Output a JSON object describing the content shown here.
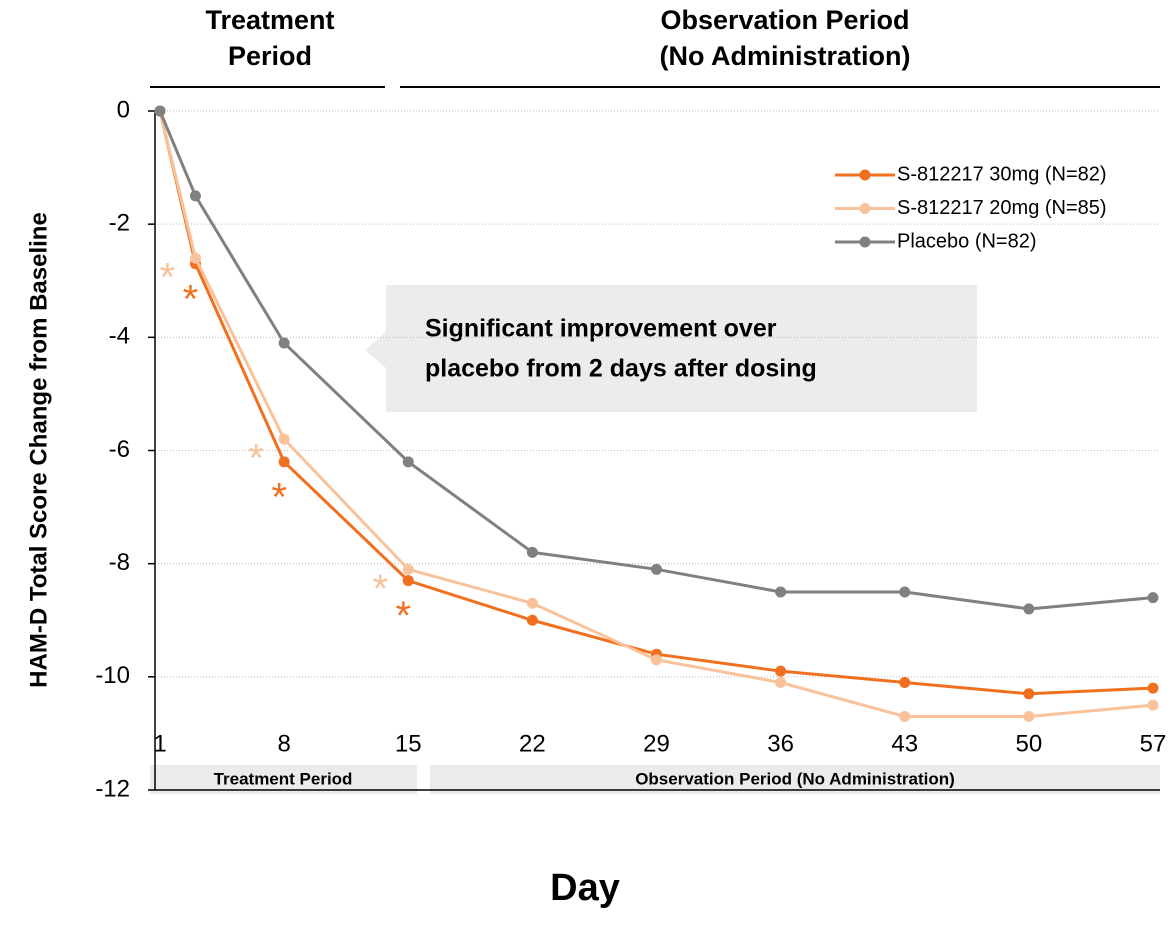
{
  "chart_data": {
    "type": "line",
    "ylabel": "HAM-D Total Score Change from Baseline",
    "xlabel": "Day",
    "period_headers": [
      {
        "lines": [
          "Treatment",
          "Period"
        ]
      },
      {
        "lines": [
          "Observation Period",
          "(No Administration)"
        ]
      }
    ],
    "period_bands": [
      "Treatment Period",
      "Observation Period (No Administration)"
    ],
    "annotation": [
      "Significant improvement over",
      "placebo from 2 days after dosing"
    ],
    "x": [
      1,
      3,
      8,
      15,
      22,
      29,
      36,
      43,
      50,
      57
    ],
    "series": [
      {
        "name": "S-812217 30mg (N=82)",
        "color": "#f07020",
        "values": [
          0,
          -2.7,
          -6.2,
          -8.3,
          -9.0,
          -9.6,
          -9.9,
          -10.1,
          -10.3,
          -10.2
        ],
        "marker": "*",
        "significant_at": [
          3,
          8,
          15
        ]
      },
      {
        "name": "S-812217 20mg (N=85)",
        "color": "#f9c29a",
        "values": [
          0,
          -2.6,
          -5.8,
          -8.1,
          -8.7,
          -9.7,
          -10.1,
          -10.7,
          -10.7,
          -10.5
        ],
        "marker": "*",
        "significant_at": [
          3,
          8,
          15
        ]
      },
      {
        "name": "Placebo (N=82)",
        "color": "#808080",
        "values": [
          0,
          -1.5,
          -4.1,
          -6.2,
          -7.8,
          -8.1,
          -8.5,
          -8.5,
          -8.8,
          -8.6
        ]
      }
    ],
    "xlim": [
      1,
      57
    ],
    "xticks": [
      1,
      8,
      15,
      22,
      29,
      36,
      43,
      50,
      57
    ],
    "ylim": [
      -12,
      0
    ],
    "yticks": [
      0,
      -2,
      -4,
      -6,
      -8,
      -10,
      -12
    ],
    "grid": true,
    "legend": "top-right"
  }
}
